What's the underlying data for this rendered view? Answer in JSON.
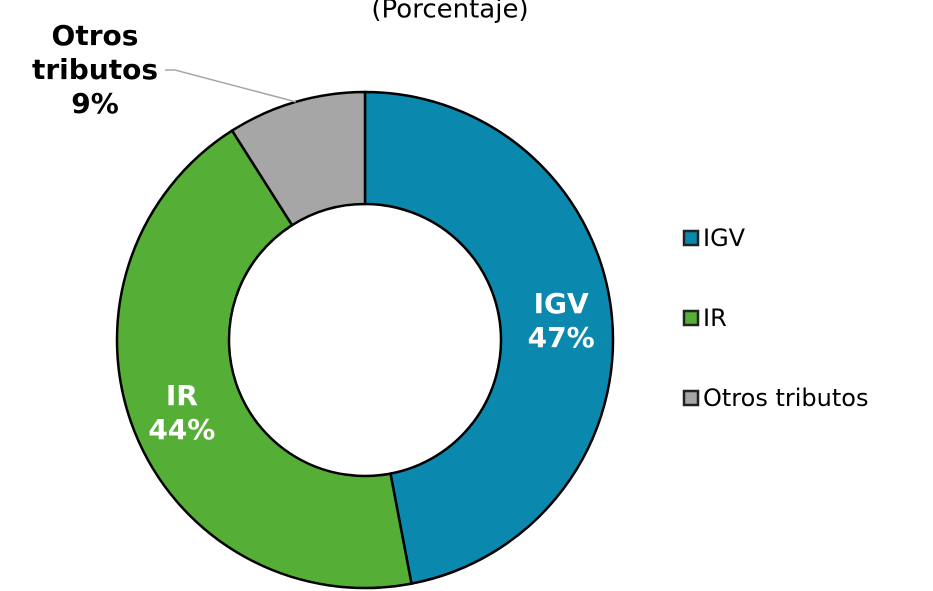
{
  "chart_data": {
    "type": "donut",
    "subtitle": "(Porcentaje)",
    "categories": [
      "IGV",
      "IR",
      "Otros tributos"
    ],
    "values": [
      47,
      44,
      9
    ],
    "value_labels": [
      "47%",
      "44%",
      "9%"
    ],
    "colors": [
      "#0a88ad",
      "#55ae35",
      "#a6a6a6"
    ],
    "legend": "right"
  }
}
